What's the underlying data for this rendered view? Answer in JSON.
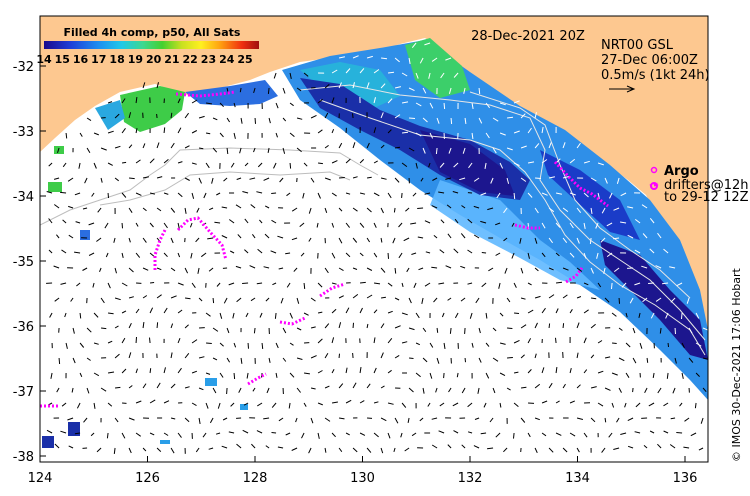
{
  "colorbar": {
    "title": "Filled 4h comp, p50, All Sats",
    "ticks": [
      "14",
      "15",
      "16",
      "17",
      "18",
      "19",
      "20",
      "21",
      "22",
      "23",
      "24",
      "25"
    ]
  },
  "date_label": "28-Dec-2021 20Z",
  "product": {
    "line1": "NRT00 GSL",
    "line2": "27-Dec 06:00Z",
    "line3": "0.5m/s (1kt 24h)"
  },
  "legend": {
    "argo": "Argo",
    "drifters": "drifters@12h",
    "drifters_to": "to 29-12 12Z"
  },
  "credit": "© IMOS 30-Dec-2021 17:06 Hobart",
  "axes": {
    "x_ticks": [
      "124",
      "126",
      "128",
      "130",
      "132",
      "134",
      "136"
    ],
    "y_ticks": [
      "-32",
      "-33",
      "-34",
      "-35",
      "-36",
      "-37",
      "-38"
    ]
  },
  "colors": {
    "land": "#fdc890",
    "argo": "#ff00ff",
    "frame": "#000000"
  }
}
